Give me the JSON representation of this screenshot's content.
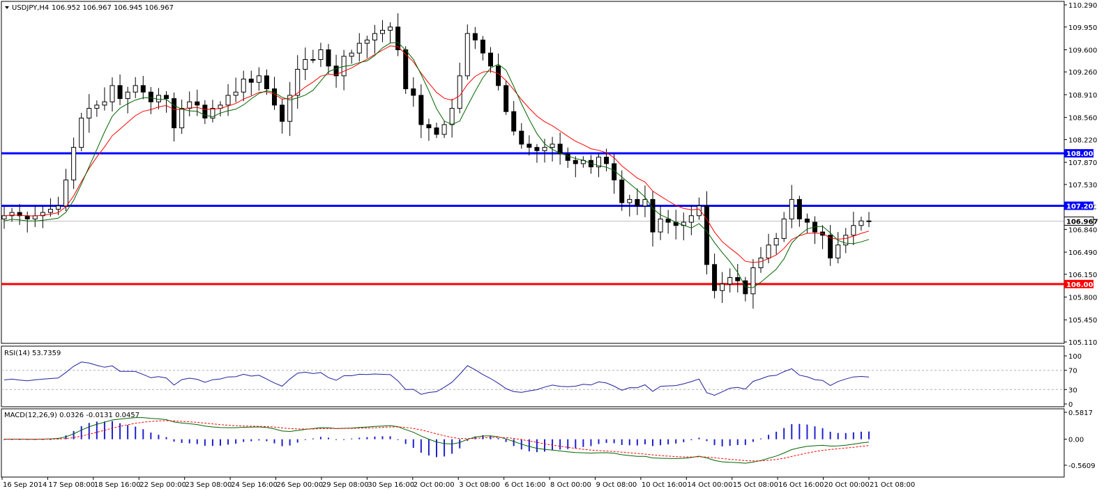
{
  "chart_data": {
    "type": "candlestick",
    "symbol_header": "USDJPY,H4",
    "ohlc_header": "106.952 106.967 106.945 106.967",
    "price_axis": {
      "range": [
        105.11,
        110.29
      ],
      "ticks": [
        "110.290",
        "109.950",
        "109.600",
        "109.260",
        "108.910",
        "108.560",
        "108.220",
        "107.870",
        "107.530",
        "107.190",
        "106.840",
        "106.490",
        "106.150",
        "105.800",
        "105.450",
        "105.110"
      ]
    },
    "levels": [
      {
        "value": 108.009,
        "label": "108.009",
        "color": "#0000ff"
      },
      {
        "value": 107.203,
        "label": "107.203",
        "color": "#0000ff"
      },
      {
        "value": 106.0,
        "label": "106.000",
        "color": "#ff0000"
      }
    ],
    "current_price": {
      "value": 106.967,
      "label": "106.967"
    },
    "x_labels": [
      "16 Sep 2014",
      "17 Sep 08:00",
      "18 Sep 16:00",
      "22 Sep 00:00",
      "23 Sep 08:00",
      "24 Sep 16:00",
      "26 Sep 00:00",
      "29 Sep 08:00",
      "30 Sep 16:00",
      "2 Oct 00:00",
      "3 Oct 08:00",
      "6 Oct 16:00",
      "8 Oct 00:00",
      "9 Oct 08:00",
      "10 Oct 16:00",
      "14 Oct 00:00",
      "15 Oct 08:00",
      "16 Oct 16:00",
      "20 Oct 00:00",
      "21 Oct 08:00"
    ],
    "closes": [
      107.05,
      107.1,
      107.05,
      107.0,
      107.05,
      107.1,
      107.15,
      107.2,
      107.6,
      108.1,
      108.55,
      108.7,
      108.75,
      108.8,
      109.05,
      108.85,
      108.95,
      109.05,
      108.95,
      108.8,
      108.9,
      108.85,
      108.4,
      108.7,
      108.8,
      108.75,
      108.55,
      108.7,
      108.75,
      108.9,
      108.95,
      109.15,
      109.1,
      109.2,
      109.0,
      108.75,
      108.5,
      108.9,
      109.3,
      109.45,
      109.45,
      109.6,
      109.35,
      109.2,
      109.5,
      109.55,
      109.7,
      109.75,
      109.85,
      109.9,
      109.95,
      109.6,
      109.0,
      108.9,
      108.45,
      108.4,
      108.3,
      108.45,
      108.7,
      109.2,
      109.85,
      109.75,
      109.55,
      109.35,
      109.05,
      108.65,
      108.35,
      108.15,
      108.1,
      108.05,
      108.1,
      108.15,
      108.0,
      107.9,
      107.85,
      107.9,
      107.8,
      107.95,
      107.85,
      107.6,
      107.25,
      107.3,
      107.2,
      107.3,
      106.8,
      107.0,
      106.95,
      106.9,
      106.95,
      107.05,
      107.2,
      106.3,
      105.9,
      106.0,
      106.1,
      106.05,
      105.85,
      106.25,
      106.4,
      106.6,
      106.7,
      107.0,
      107.3,
      107.0,
      106.95,
      106.8,
      106.75,
      106.4,
      106.6,
      106.75,
      106.9,
      106.97,
      106.97
    ],
    "rsi": {
      "label": "RSI(14) 53.7359",
      "ticks": [
        "100",
        "70",
        "30",
        "0"
      ],
      "levels": [
        70,
        30
      ],
      "range": [
        0,
        100
      ]
    },
    "macd": {
      "label": "MACD(12,26,9) 0.0326 -0.0131 0.0457",
      "ticks": [
        "0.5817",
        "0.00",
        "-0.5609"
      ],
      "range": [
        -0.5609,
        0.5817
      ]
    }
  }
}
